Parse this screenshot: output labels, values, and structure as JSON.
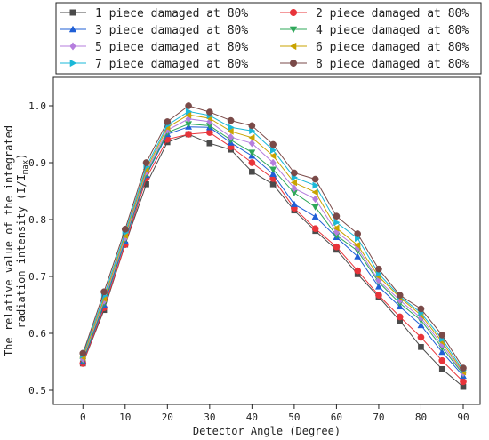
{
  "chart_data": {
    "type": "line",
    "xlabel": "Detector Angle (Degree)",
    "ylabel_line1": "The relative value of the integrated",
    "ylabel_line2": "radiation intensity (I/I",
    "ylabel_sub": "max",
    "ylabel_close": ")",
    "xlim": [
      -7,
      94
    ],
    "ylim": [
      0.475,
      1.05
    ],
    "x": [
      0,
      5,
      10,
      15,
      20,
      25,
      30,
      35,
      40,
      45,
      50,
      55,
      60,
      65,
      70,
      75,
      80,
      85,
      90
    ],
    "xticks": [
      0,
      10,
      20,
      30,
      40,
      50,
      60,
      70,
      80,
      90
    ],
    "yticks": [
      0.5,
      0.6,
      0.7,
      0.8,
      0.9,
      1.0
    ],
    "ytick_labels": [
      "0.5",
      "0.6",
      "0.7",
      "0.8",
      "0.9",
      "1.0"
    ],
    "legend_position": "top",
    "series": [
      {
        "name": "1 piece damaged at 80%",
        "color": "#4a4a4a",
        "marker": "square",
        "values": [
          0.547,
          0.641,
          0.756,
          0.862,
          0.936,
          0.95,
          0.934,
          0.923,
          0.884,
          0.862,
          0.816,
          0.78,
          0.747,
          0.704,
          0.664,
          0.622,
          0.576,
          0.537,
          0.506
        ]
      },
      {
        "name": "2 piece damaged at 80%",
        "color": "#e8343a",
        "marker": "circle",
        "values": [
          0.547,
          0.645,
          0.756,
          0.873,
          0.941,
          0.95,
          0.953,
          0.928,
          0.9,
          0.872,
          0.82,
          0.784,
          0.752,
          0.71,
          0.667,
          0.629,
          0.593,
          0.552,
          0.515
        ]
      },
      {
        "name": "3 piece damaged at 80%",
        "color": "#1f5fd6",
        "marker": "triangle-up",
        "values": [
          0.55,
          0.65,
          0.762,
          0.878,
          0.95,
          0.963,
          0.962,
          0.935,
          0.912,
          0.88,
          0.827,
          0.805,
          0.769,
          0.735,
          0.682,
          0.647,
          0.614,
          0.567,
          0.525
        ]
      },
      {
        "name": "4 piece damaged at 80%",
        "color": "#2fa85a",
        "marker": "triangle-down",
        "values": [
          0.552,
          0.653,
          0.765,
          0.88,
          0.953,
          0.968,
          0.965,
          0.94,
          0.918,
          0.888,
          0.847,
          0.822,
          0.772,
          0.745,
          0.69,
          0.653,
          0.623,
          0.575,
          0.528
        ]
      },
      {
        "name": "5 piece damaged at 80%",
        "color": "#b57ede",
        "marker": "diamond",
        "values": [
          0.555,
          0.657,
          0.768,
          0.884,
          0.957,
          0.977,
          0.972,
          0.945,
          0.934,
          0.9,
          0.855,
          0.836,
          0.778,
          0.75,
          0.693,
          0.658,
          0.627,
          0.58,
          0.53
        ]
      },
      {
        "name": "6 piece damaged at 80%",
        "color": "#c9a300",
        "marker": "triangle-left",
        "values": [
          0.558,
          0.661,
          0.772,
          0.888,
          0.962,
          0.984,
          0.978,
          0.955,
          0.944,
          0.912,
          0.865,
          0.848,
          0.785,
          0.755,
          0.7,
          0.663,
          0.632,
          0.585,
          0.532
        ]
      },
      {
        "name": "7 piece damaged at 80%",
        "color": "#1ab8d8",
        "marker": "triangle-right",
        "values": [
          0.562,
          0.666,
          0.777,
          0.893,
          0.966,
          0.99,
          0.983,
          0.962,
          0.956,
          0.922,
          0.874,
          0.86,
          0.795,
          0.767,
          0.705,
          0.665,
          0.636,
          0.59,
          0.535
        ]
      },
      {
        "name": "8 piece damaged at 80%",
        "color": "#7a4a48",
        "marker": "circle",
        "values": [
          0.565,
          0.673,
          0.783,
          0.9,
          0.972,
          1.0,
          0.989,
          0.974,
          0.965,
          0.932,
          0.882,
          0.871,
          0.806,
          0.775,
          0.713,
          0.667,
          0.643,
          0.597,
          0.539
        ]
      }
    ]
  }
}
